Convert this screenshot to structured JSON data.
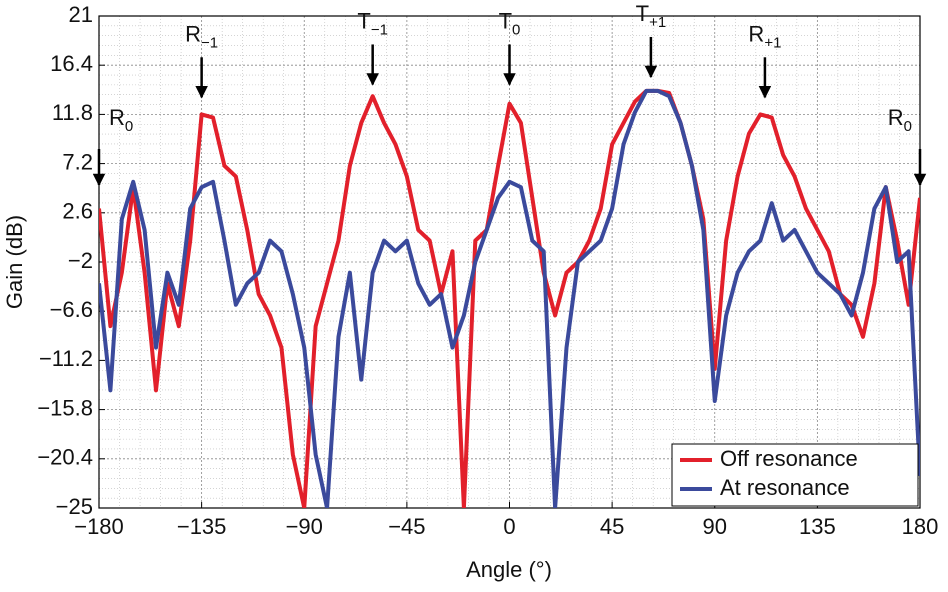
{
  "chart_data": {
    "type": "line",
    "x_label": "Angle (°)",
    "y_label": "Gain (dB)",
    "xlim": [
      -180,
      180
    ],
    "xticks": [
      {
        "value": -180,
        "label": "−180"
      },
      {
        "value": -135,
        "label": "−135"
      },
      {
        "value": -90,
        "label": "−90"
      },
      {
        "value": -45,
        "label": "−45"
      },
      0,
      45,
      90,
      135,
      180
    ],
    "ylim": [
      -25,
      21
    ],
    "yticks": [
      {
        "value": -25,
        "label": "−25"
      },
      {
        "value": -20.4,
        "label": "−20.4"
      },
      {
        "value": -15.8,
        "label": "−15.8"
      },
      {
        "value": -11.2,
        "label": "−11.2"
      },
      {
        "value": -6.6,
        "label": "−6.6"
      },
      {
        "value": -2,
        "label": "−2"
      },
      2.6,
      7.2,
      11.8,
      16.4,
      21
    ],
    "grid": true,
    "legend": "lower right",
    "x": [
      -180,
      -175,
      -170,
      -165,
      -160,
      -155,
      -150,
      -145,
      -140,
      -135,
      -130,
      -125,
      -120,
      -115,
      -110,
      -105,
      -100,
      -95,
      -90,
      -85,
      -80,
      -75,
      -70,
      -65,
      -60,
      -55,
      -50,
      -45,
      -40,
      -35,
      -30,
      -25,
      -20,
      -15,
      -10,
      -5,
      0,
      5,
      10,
      15,
      20,
      25,
      30,
      35,
      40,
      45,
      50,
      55,
      60,
      65,
      70,
      75,
      80,
      85,
      90,
      95,
      100,
      105,
      110,
      115,
      120,
      125,
      130,
      135,
      140,
      145,
      150,
      155,
      160,
      165,
      170,
      175,
      180
    ],
    "series": [
      {
        "name": "Off resonance",
        "color": "#e2202b",
        "values": [
          3,
          -8,
          -3,
          5,
          -3,
          -14,
          -4,
          -8,
          0,
          11.8,
          11.5,
          7,
          6,
          1,
          -5,
          -7,
          -10,
          -20,
          -25,
          -8,
          -4,
          0,
          7,
          11,
          13.5,
          11,
          9,
          6,
          1,
          0,
          -5,
          -1,
          -25,
          0,
          1,
          7,
          12.8,
          11,
          4,
          -3,
          -7,
          -3,
          -2,
          0,
          3,
          9,
          11,
          13,
          14,
          14,
          13.8,
          11,
          7,
          2,
          -12,
          0,
          6,
          10,
          11.8,
          11.5,
          8,
          6,
          3,
          1,
          -1,
          -5,
          -6,
          -9,
          -4,
          5,
          0,
          -6,
          4
        ]
      },
      {
        "name": "At resonance",
        "color": "#3b4a9c",
        "values": [
          -4,
          -14,
          2,
          5.5,
          1,
          -10,
          -3,
          -6,
          3,
          5,
          5.5,
          0,
          -6,
          -4,
          -3,
          0,
          -1,
          -5,
          -10,
          -20,
          -25,
          -9,
          -3,
          -13,
          -3,
          0,
          -1,
          0,
          -4,
          -6,
          -5,
          -10,
          -7,
          -2,
          1,
          4,
          5.5,
          5,
          0,
          -1,
          -25,
          -10,
          -2,
          -1,
          0,
          3,
          9,
          12,
          14,
          14,
          13.5,
          11,
          7,
          1,
          -15,
          -7,
          -3,
          -1,
          0,
          3.5,
          0,
          1,
          -1,
          -3,
          -4,
          -5,
          -7,
          -3,
          3,
          5,
          -2,
          -1,
          -22
        ]
      }
    ],
    "annotations": [
      {
        "text": "R",
        "sub": "−1",
        "x": -135,
        "y": 13.4
      },
      {
        "text": "T",
        "sub": "−1",
        "x": -60,
        "y": 14.6
      },
      {
        "text": "T",
        "sub": "0",
        "x": 0,
        "y": 14.6
      },
      {
        "text": "T",
        "sub": "+1",
        "x": 62,
        "y": 15.3
      },
      {
        "text": "R",
        "sub": "+1",
        "x": 112,
        "y": 13.4
      },
      {
        "text": "R",
        "sub": "0",
        "x": -180,
        "y": 5.2
      },
      {
        "text": "R",
        "sub": "0",
        "x": 180,
        "y": 5.2
      }
    ]
  }
}
